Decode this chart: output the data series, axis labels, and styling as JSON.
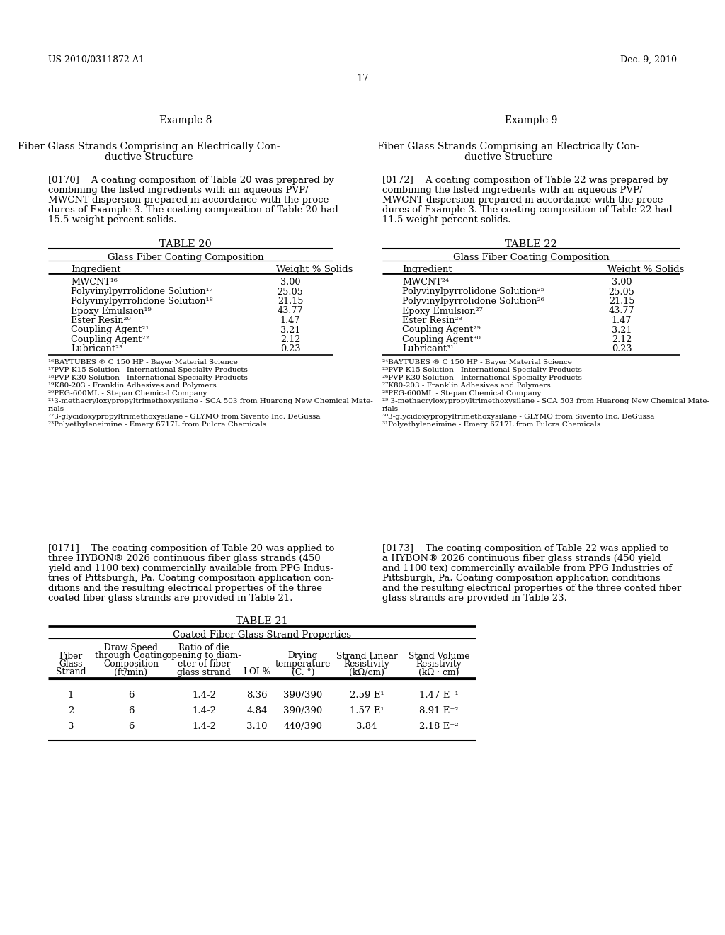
{
  "header_left": "US 2010/0311872 A1",
  "header_right": "Dec. 9, 2010",
  "page_number": "17",
  "table20_title": "TABLE 20",
  "table20_subtitle": "Glass Fiber Coating Composition",
  "table20_col1": "Ingredient",
  "table20_col2": "Weight % Solids",
  "table20_rows": [
    [
      "MWCNT¹⁶",
      "3.00"
    ],
    [
      "Polyvinylpyrrolidone Solution¹⁷",
      "25.05"
    ],
    [
      "Polyvinylpyrrolidone Solution¹⁸",
      "21.15"
    ],
    [
      "Epoxy Emulsion¹⁹",
      "43.77"
    ],
    [
      "Ester Resin²⁰",
      "1.47"
    ],
    [
      "Coupling Agent²¹",
      "3.21"
    ],
    [
      "Coupling Agent²²",
      "2.12"
    ],
    [
      "Lubricant²³",
      "0.23"
    ]
  ],
  "table20_footnotes": [
    "¹⁶BAYTUBES ® C 150 HP - Bayer Material Science",
    "¹⁷PVP K15 Solution - International Specialty Products",
    "¹⁸PVP K30 Solution - International Specialty Products",
    "¹⁹K80-203 - Franklin Adhesives and Polymers",
    "²⁰PEG-600ML - Stepan Chemical Company",
    "²¹3-methacryloxypropyltrimethoxysilane - SCA 503 from Huarong New Chemical Mate-",
    "rials",
    "²²3-glycidoxypropyltrimethoxysilane - GLYMO from Sivento Inc. DeGussa",
    "²³Polyethyleneimine - Emery 6717L from Pulcra Chemicals"
  ],
  "table22_title": "TABLE 22",
  "table22_subtitle": "Glass Fiber Coating Composition",
  "table22_col1": "Ingredient",
  "table22_col2": "Weight % Solids",
  "table22_rows": [
    [
      "MWCNT²⁴",
      "3.00"
    ],
    [
      "Polyvinylpyrrolidone Solution²⁵",
      "25.05"
    ],
    [
      "Polyvinylpyrrolidone Solution²⁶",
      "21.15"
    ],
    [
      "Epoxy Emulsion²⁷",
      "43.77"
    ],
    [
      "Ester Resin²⁸",
      "1.47"
    ],
    [
      "Coupling Agent²⁹",
      "3.21"
    ],
    [
      "Coupling Agent³⁰",
      "2.12"
    ],
    [
      "Lubricant³¹",
      "0.23"
    ]
  ],
  "table22_footnotes": [
    "²⁴BAYTUBES ® C 150 HP - Bayer Material Science",
    "²⁵PVP K15 Solution - International Specialty Products",
    "²⁶PVP K30 Solution - International Specialty Products",
    "²⁷K80-203 - Franklin Adhesives and Polymers",
    "²⁸PEG-600ML - Stepan Chemical Company",
    "²⁹ 3-methacryloxypropyltrimethoxysilane - SCA 503 from Huarong New Chemical Mate-",
    "rials",
    "³⁰3-glycidoxypropyltrimethoxysilane - GLYMO from Sivento Inc. DeGussa",
    "³¹Polyethyleneimine - Emery 6717L from Pulcra Chemicals"
  ],
  "table21_title": "TABLE 21",
  "table21_subtitle": "Coated Fiber Glass Strand Properties",
  "table21_rows": [
    [
      "1",
      "6",
      "1.4-2",
      "8.36",
      "390/390",
      "2.59 E¹",
      "1.47 E⁻¹"
    ],
    [
      "2",
      "6",
      "1.4-2",
      "4.84",
      "390/390",
      "1.57 E¹",
      "8.91 E⁻²"
    ],
    [
      "3",
      "6",
      "1.4-2",
      "3.10",
      "440/390",
      "3.84",
      "2.18 E⁻²"
    ]
  ],
  "bg_color": "#ffffff"
}
